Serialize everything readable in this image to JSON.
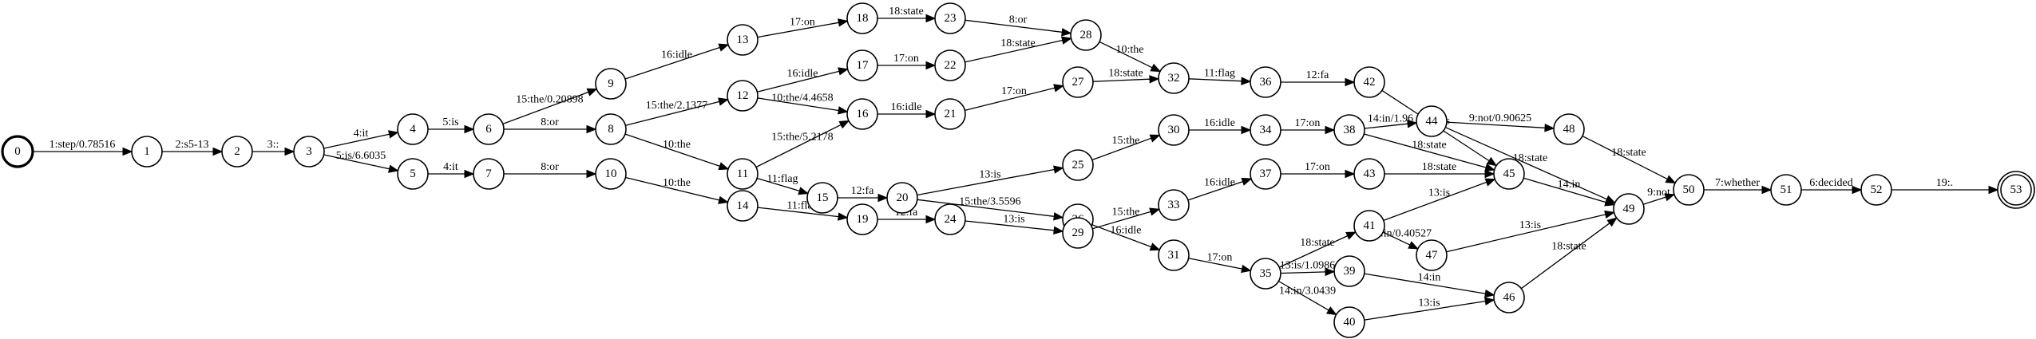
{
  "diagram": {
    "type": "weighted finite state transducer",
    "start_state": "0",
    "final_states": [
      "53"
    ],
    "states": [
      "0",
      "1",
      "2",
      "3",
      "4",
      "5",
      "6",
      "7",
      "8",
      "9",
      "10",
      "11",
      "12",
      "13",
      "14",
      "15",
      "16",
      "17",
      "18",
      "19",
      "20",
      "21",
      "22",
      "23",
      "24",
      "25",
      "26",
      "27",
      "28",
      "29",
      "30",
      "31",
      "32",
      "33",
      "34",
      "35",
      "36",
      "37",
      "38",
      "39",
      "40",
      "41",
      "42",
      "43",
      "44",
      "45",
      "46",
      "47",
      "48",
      "49",
      "50",
      "51",
      "52",
      "53"
    ],
    "edges": [
      {
        "from": "0",
        "to": "1",
        "label": "1:step/0.78516"
      },
      {
        "from": "1",
        "to": "2",
        "label": "2:s5-13"
      },
      {
        "from": "2",
        "to": "3",
        "label": "3::"
      },
      {
        "from": "3",
        "to": "4",
        "label": "4:it"
      },
      {
        "from": "3",
        "to": "5",
        "label": "5:is/6.6035"
      },
      {
        "from": "4",
        "to": "6",
        "label": "5:is"
      },
      {
        "from": "5",
        "to": "7",
        "label": "4:it"
      },
      {
        "from": "6",
        "to": "9",
        "label": "15:the/0.20898"
      },
      {
        "from": "6",
        "to": "8",
        "label": "8:or"
      },
      {
        "from": "7",
        "to": "10",
        "label": "8:or"
      },
      {
        "from": "9",
        "to": "13",
        "label": "16:idle"
      },
      {
        "from": "8",
        "to": "12",
        "label": "15:the/2.1377"
      },
      {
        "from": "8",
        "to": "11",
        "label": "10:the"
      },
      {
        "from": "10",
        "to": "14",
        "label": "10:the"
      },
      {
        "from": "13",
        "to": "18",
        "label": "17:on"
      },
      {
        "from": "12",
        "to": "17",
        "label": "16:idle"
      },
      {
        "from": "12",
        "to": "16",
        "label": "10:the/4.4658"
      },
      {
        "from": "11",
        "to": "16",
        "label": "15:the/5.2178"
      },
      {
        "from": "11",
        "to": "15",
        "label": "11:flag"
      },
      {
        "from": "14",
        "to": "19",
        "label": "11:flag"
      },
      {
        "from": "18",
        "to": "23",
        "label": "18:state"
      },
      {
        "from": "17",
        "to": "22",
        "label": "17:on"
      },
      {
        "from": "16",
        "to": "21",
        "label": "16:idle"
      },
      {
        "from": "15",
        "to": "20",
        "label": "12:fa"
      },
      {
        "from": "19",
        "to": "24",
        "label": "12:fa"
      },
      {
        "from": "23",
        "to": "28",
        "label": "8:or"
      },
      {
        "from": "22",
        "to": "28",
        "label": "18:state"
      },
      {
        "from": "21",
        "to": "27",
        "label": "17:on"
      },
      {
        "from": "20",
        "to": "25",
        "label": "13:is"
      },
      {
        "from": "20",
        "to": "26",
        "label": "15:the/3.5596"
      },
      {
        "from": "24",
        "to": "29",
        "label": "13:is"
      },
      {
        "from": "28",
        "to": "32",
        "label": "10:the"
      },
      {
        "from": "27",
        "to": "32",
        "label": "18:state"
      },
      {
        "from": "25",
        "to": "30",
        "label": "15:the"
      },
      {
        "from": "26",
        "to": "31",
        "label": "16:idle"
      },
      {
        "from": "29",
        "to": "33",
        "label": "15:the"
      },
      {
        "from": "32",
        "to": "36",
        "label": "11:flag"
      },
      {
        "from": "30",
        "to": "34",
        "label": "16:idle"
      },
      {
        "from": "33",
        "to": "37",
        "label": "16:idle"
      },
      {
        "from": "31",
        "to": "35",
        "label": "17:on"
      },
      {
        "from": "36",
        "to": "42",
        "label": "12:fa"
      },
      {
        "from": "34",
        "to": "38",
        "label": "17:on"
      },
      {
        "from": "37",
        "to": "43",
        "label": "17:on"
      },
      {
        "from": "35",
        "to": "41",
        "label": "18:state"
      },
      {
        "from": "35",
        "to": "39",
        "label": "13:is/1.0986"
      },
      {
        "from": "35",
        "to": "40",
        "label": "14:in/3.0439"
      },
      {
        "from": "42",
        "to": "45",
        "label": "13:is"
      },
      {
        "from": "38",
        "to": "44",
        "label": "14:in/1.96"
      },
      {
        "from": "38",
        "to": "45",
        "label": "18:state"
      },
      {
        "from": "43",
        "to": "45",
        "label": "18:state"
      },
      {
        "from": "41",
        "to": "45",
        "label": "13:is"
      },
      {
        "from": "41",
        "to": "47",
        "label": "14:in/0.40527"
      },
      {
        "from": "39",
        "to": "46",
        "label": "14:in"
      },
      {
        "from": "40",
        "to": "46",
        "label": "13:is"
      },
      {
        "from": "44",
        "to": "48",
        "label": "9:not/0.90625"
      },
      {
        "from": "44",
        "to": "49",
        "label": "18:state"
      },
      {
        "from": "45",
        "to": "49",
        "label": "14:in"
      },
      {
        "from": "47",
        "to": "49",
        "label": "13:is"
      },
      {
        "from": "46",
        "to": "49",
        "label": "18:state"
      },
      {
        "from": "48",
        "to": "50",
        "label": "18:state"
      },
      {
        "from": "49",
        "to": "50",
        "label": "9:not"
      },
      {
        "from": "50",
        "to": "51",
        "label": "7:whether"
      },
      {
        "from": "51",
        "to": "52",
        "label": "6:decided"
      },
      {
        "from": "52",
        "to": "53",
        "label": "19:."
      }
    ]
  }
}
